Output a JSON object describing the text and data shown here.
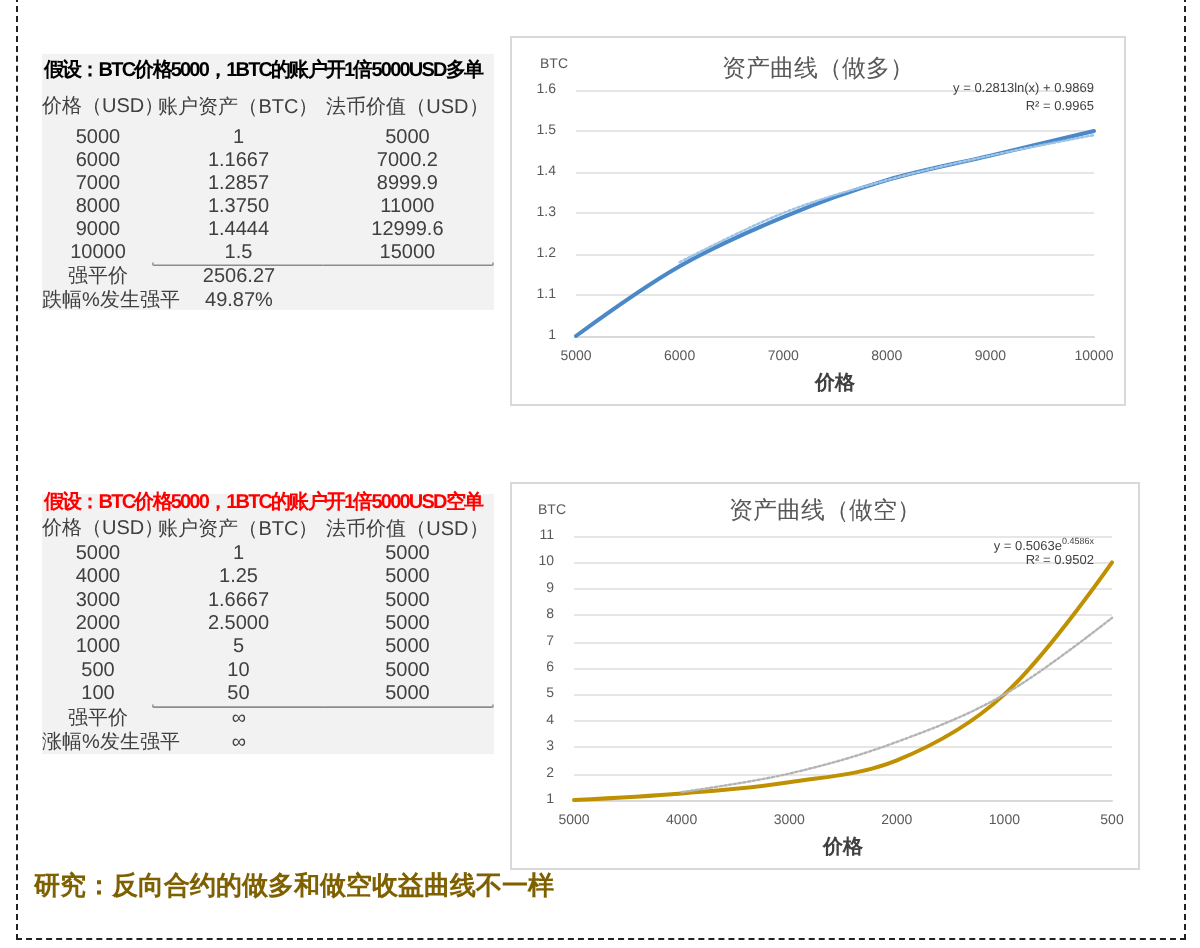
{
  "chart_data": [
    {
      "type": "heatmap",
      "title": "假设：BTC价格5000，1BTC的账户开1倍5000USD多单",
      "ylabel": "价格（USD）",
      "categories": [
        "账户资产（BTC）",
        "法币价值（USD）"
      ],
      "y_categories": [
        "5000",
        "6000",
        "7000",
        "8000",
        "9000",
        "10000"
      ],
      "cells": [
        [
          1,
          5000
        ],
        [
          1.1667,
          7000.2
        ],
        [
          1.2857,
          8999.9
        ],
        [
          1.375,
          11000
        ],
        [
          1.4444,
          12999.6
        ],
        [
          1.5,
          15000
        ]
      ],
      "cell_labels": [
        [
          "1",
          "5000"
        ],
        [
          "1.1667",
          "7000.2"
        ],
        [
          "1.2857",
          "8999.9"
        ],
        [
          "1.3750",
          "11000"
        ],
        [
          "1.4444",
          "12999.6"
        ],
        [
          "1.5",
          "15000"
        ]
      ],
      "annotations": [
        "强平价",
        "2506.27",
        "跌幅%发生强平",
        "49.87%"
      ]
    },
    {
      "type": "line",
      "title": "资产曲线（做多）",
      "xlabel": "价格",
      "ylabel": "BTC",
      "categories": [
        "5000",
        "6000",
        "7000",
        "8000",
        "9000",
        "10000"
      ],
      "ylim": [
        1,
        1.6
      ],
      "yticks": [
        1,
        1.1,
        1.2,
        1.3,
        1.4,
        1.5,
        1.6
      ],
      "grid": "y",
      "marker": "none",
      "series": [
        {
          "color": "#4a88c8",
          "values": [
            1,
            1.17,
            1.29,
            1.38,
            1.44,
            1.5
          ]
        },
        {
          "color": "#9dc3e6",
          "line_style": "dotted",
          "values": [
            null,
            1.18,
            1.3,
            1.38,
            1.44,
            1.49
          ]
        }
      ],
      "annotations": [
        "y = 0.2813ln(x) + 0.9869",
        "R² = 0.9965"
      ]
    },
    {
      "type": "heatmap",
      "title": "假设：BTC价格5000，1BTC的账户开1倍5000USD空单",
      "ylabel": "价格（USD）",
      "categories": [
        "账户资产（BTC）",
        "法币价值（USD）"
      ],
      "y_categories": [
        "5000",
        "4000",
        "3000",
        "2000",
        "1000",
        "500",
        "100"
      ],
      "cells": [
        [
          1,
          5000
        ],
        [
          1.25,
          5000
        ],
        [
          1.6667,
          5000
        ],
        [
          2.5,
          5000
        ],
        [
          5,
          5000
        ],
        [
          10,
          5000
        ],
        [
          50,
          5000
        ]
      ],
      "cell_labels": [
        [
          "1",
          "5000"
        ],
        [
          "1.25",
          "5000"
        ],
        [
          "1.6667",
          "5000"
        ],
        [
          "2.5000",
          "5000"
        ],
        [
          "5",
          "5000"
        ],
        [
          "10",
          "5000"
        ],
        [
          "50",
          "5000"
        ]
      ],
      "annotations": [
        "强平价",
        "∞",
        "涨幅%发生强平",
        "∞",
        "研究：反向合约的做多和做空收益曲线不一样"
      ]
    },
    {
      "type": "line",
      "title": "资产曲线（做空）",
      "xlabel": "价格",
      "ylabel": "BTC",
      "categories": [
        "5000",
        "4000",
        "3000",
        "2000",
        "1000",
        "500"
      ],
      "ylim": [
        1,
        11
      ],
      "yticks": [
        1,
        2,
        3,
        4,
        5,
        6,
        7,
        8,
        9,
        10,
        11
      ],
      "grid": "y",
      "marker": "none",
      "series": [
        {
          "color": "#bf9000",
          "values": [
            1,
            1.25,
            1.67,
            2.5,
            5,
            10
          ]
        },
        {
          "color": "#b4b4b4",
          "line_style": "dotted",
          "values": [
            null,
            1.3,
            2.0,
            3.2,
            5.0,
            7.9
          ]
        }
      ],
      "annotations": [
        "y = 0.5063e$^{0.4586x}$",
        "R² = 0.9502"
      ]
    }
  ]
}
